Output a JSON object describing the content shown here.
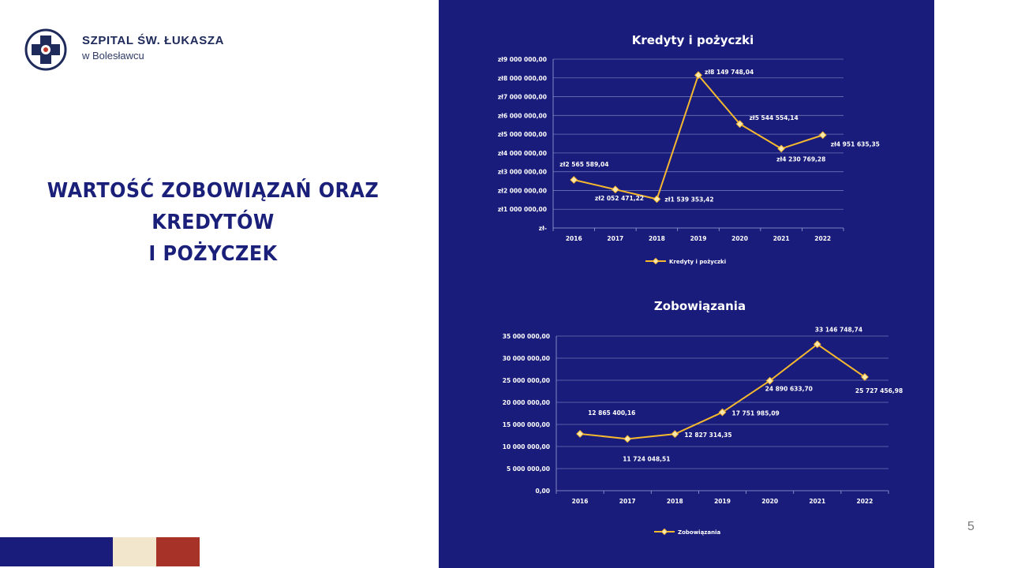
{
  "org": {
    "name": "SZPITAL ŚW. ŁUKASZA",
    "city": "w Bolesławcu"
  },
  "heading": {
    "line1": "WARTOŚĆ ZOBOWIĄZAŃ ORAZ",
    "line2": "KREDYTÓW",
    "line3": "I POŻYCZEK"
  },
  "page_number": "5",
  "colors": {
    "panel": "#191c7b",
    "line": "#f5b82e",
    "marker": "#fbe7b0",
    "bar_navy": "#191c7b",
    "bar_cream": "#f2e6cc",
    "bar_red": "#a63228"
  },
  "chart_data": [
    {
      "type": "line",
      "title": "Kredyty i pożyczki",
      "categories": [
        "2016",
        "2017",
        "2018",
        "2019",
        "2020",
        "2021",
        "2022"
      ],
      "series": [
        {
          "name": "Kredyty i pożyczki",
          "values": [
            2565589.04,
            2052471.22,
            1539353.42,
            8149748.04,
            5544554.14,
            4230769.28,
            4951635.35
          ]
        }
      ],
      "data_labels": [
        "zł2 565 589,04",
        "zł2 052 471,22",
        "zł1 539 353,42",
        "zł8 149 748,04",
        "zł5 544 554,14",
        "zł4 230 769,28",
        "zł4 951 635,35"
      ],
      "y_ticks": [
        "zł9 000 000,00",
        "zł8 000 000,00",
        "zł7 000 000,00",
        "zł6 000 000,00",
        "zł5 000 000,00",
        "zł4 000 000,00",
        "zł3 000 000,00",
        "zł2 000 000,00",
        "zł1 000 000,00",
        "zł-"
      ],
      "ylim": [
        0,
        9000000
      ],
      "grid": true,
      "legend": "bottom"
    },
    {
      "type": "line",
      "title": "Zobowiązania",
      "categories": [
        "2016",
        "2017",
        "2018",
        "2019",
        "2020",
        "2021",
        "2022"
      ],
      "series": [
        {
          "name": "Zobowiązania",
          "values": [
            12865400.16,
            11724048.51,
            12827314.35,
            17751985.09,
            24890633.7,
            33146748.74,
            25727456.98
          ]
        }
      ],
      "data_labels": [
        "12 865 400,16",
        "11 724 048,51",
        "12 827 314,35",
        "17 751 985,09",
        "24 890 633,70",
        "33 146 748,74",
        "25 727 456,98"
      ],
      "y_ticks": [
        "35 000 000,00",
        "30 000 000,00",
        "25 000 000,00",
        "20 000 000,00",
        "15 000 000,00",
        "10 000 000,00",
        "5 000 000,00",
        "0,00"
      ],
      "ylim": [
        0,
        35000000
      ],
      "grid": true,
      "legend": "bottom"
    }
  ]
}
